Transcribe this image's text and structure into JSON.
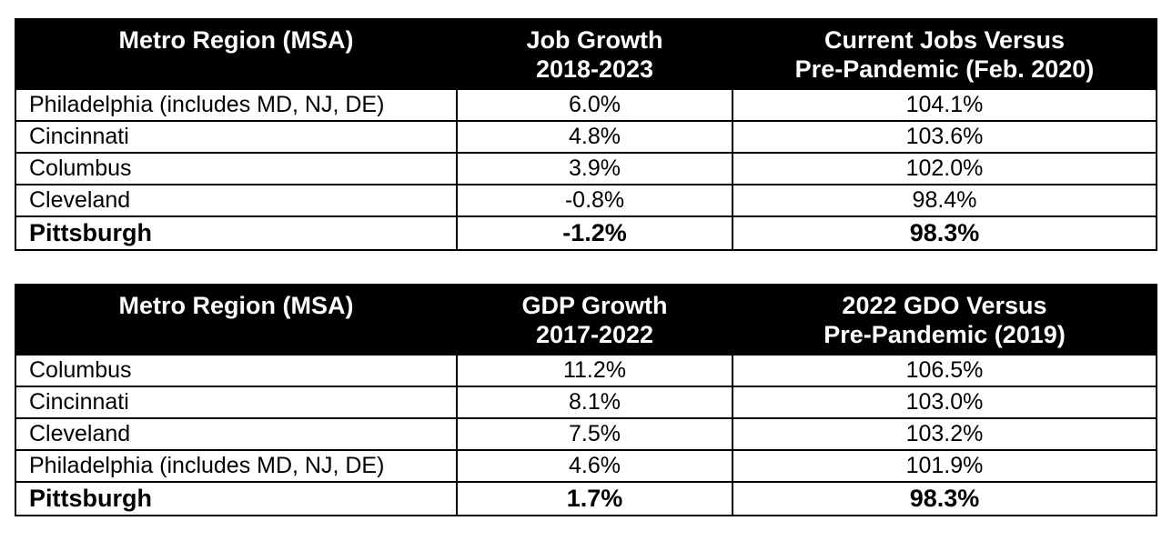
{
  "tables": [
    {
      "headers": [
        {
          "line1": "Metro Region (MSA)",
          "line2": ""
        },
        {
          "line1": "Job Growth",
          "line2": "2018-2023"
        },
        {
          "line1": "Current Jobs Versus",
          "line2": "Pre-Pandemic (Feb. 2020)"
        }
      ],
      "rows": [
        {
          "region": "Philadelphia (includes MD, NJ, DE)",
          "growth": "6.0%",
          "versus": "104.1%"
        },
        {
          "region": "Cincinnati",
          "growth": "4.8%",
          "versus": "103.6%"
        },
        {
          "region": "Columbus",
          "growth": "3.9%",
          "versus": "102.0%"
        },
        {
          "region": "Cleveland",
          "growth": "-0.8%",
          "versus": "98.4%"
        },
        {
          "region": "Pittsburgh",
          "growth": "-1.2%",
          "versus": "98.3%"
        }
      ]
    },
    {
      "headers": [
        {
          "line1": "Metro Region (MSA)",
          "line2": ""
        },
        {
          "line1": "GDP Growth",
          "line2": "2017-2022"
        },
        {
          "line1": "2022 GDO Versus",
          "line2": "Pre-Pandemic (2019)"
        }
      ],
      "rows": [
        {
          "region": "Columbus",
          "growth": "11.2%",
          "versus": "106.5%"
        },
        {
          "region": "Cincinnati",
          "growth": "8.1%",
          "versus": "103.0%"
        },
        {
          "region": "Cleveland",
          "growth": "7.5%",
          "versus": "103.2%"
        },
        {
          "region": "Philadelphia (includes MD, NJ, DE)",
          "growth": "4.6%",
          "versus": "101.9%"
        },
        {
          "region": "Pittsburgh",
          "growth": "1.7%",
          "versus": "98.3%"
        }
      ]
    }
  ]
}
